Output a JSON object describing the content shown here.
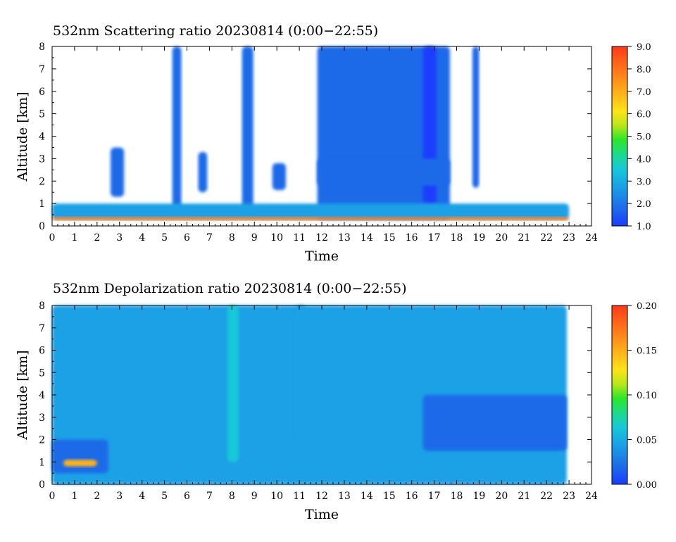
{
  "colormap": [
    "#1a3cff",
    "#1e6be8",
    "#1aa0e6",
    "#18c8d8",
    "#1fd98a",
    "#2ee62a",
    "#b8e61a",
    "#ffe31a",
    "#ffb21a",
    "#ff7a1a",
    "#ff3a1a"
  ],
  "chart_data": [
    {
      "type": "heatmap",
      "title": "532nm Scattering ratio  20230814 (0:00−22:55)",
      "xlabel": "Time",
      "ylabel": "Altitude [km]",
      "xlim": [
        0,
        24
      ],
      "ylim": [
        0,
        8
      ],
      "x_ticks": [
        0,
        1,
        2,
        3,
        4,
        5,
        6,
        7,
        8,
        9,
        10,
        11,
        12,
        13,
        14,
        15,
        16,
        17,
        18,
        19,
        20,
        21,
        22,
        23,
        24
      ],
      "y_ticks": [
        0,
        1,
        2,
        3,
        4,
        5,
        6,
        7,
        8
      ],
      "colorbar": {
        "range": [
          1.0,
          9.0
        ],
        "ticks": [
          "1.0",
          "2.0",
          "3.0",
          "4.0",
          "5.0",
          "6.0",
          "7.0",
          "8.0",
          "9.0"
        ]
      },
      "regions": [
        {
          "x": [
            11.8,
            17.7
          ],
          "y": [
            0.3,
            8.0
          ],
          "value": 1.6
        },
        {
          "x": [
            16.5,
            17.1
          ],
          "y": [
            1.0,
            8.0
          ],
          "value": 1.3
        },
        {
          "x": [
            11.8,
            17.7
          ],
          "y": [
            1.8,
            3.0
          ],
          "value": 2.0
        },
        {
          "x": [
            5.35,
            5.75
          ],
          "y": [
            0.5,
            8.0
          ],
          "value": 1.8
        },
        {
          "x": [
            8.45,
            8.95
          ],
          "y": [
            0.5,
            8.0
          ],
          "value": 1.9
        },
        {
          "x": [
            18.7,
            19.0
          ],
          "y": [
            1.7,
            8.0
          ],
          "value": 1.7
        },
        {
          "x": [
            2.6,
            3.2
          ],
          "y": [
            1.3,
            3.5
          ],
          "value": 1.8
        },
        {
          "x": [
            6.5,
            6.9
          ],
          "y": [
            1.5,
            3.3
          ],
          "value": 1.8
        },
        {
          "x": [
            9.8,
            10.4
          ],
          "y": [
            1.6,
            2.8
          ],
          "value": 1.8
        },
        {
          "x": [
            0,
            23
          ],
          "y": [
            0.3,
            1.0
          ],
          "value": 2.5
        },
        {
          "x": [
            0,
            23
          ],
          "y": [
            0.25,
            0.4
          ],
          "value": 8.5
        }
      ]
    },
    {
      "type": "heatmap",
      "title": "532nm Depolarization ratio  20230814 (0:00−22:55)",
      "xlabel": "Time",
      "ylabel": "Altitude [km]",
      "xlim": [
        0,
        24
      ],
      "ylim": [
        0,
        8
      ],
      "x_ticks": [
        0,
        1,
        2,
        3,
        4,
        5,
        6,
        7,
        8,
        9,
        10,
        11,
        12,
        13,
        14,
        15,
        16,
        17,
        18,
        19,
        20,
        21,
        22,
        23,
        24
      ],
      "y_ticks": [
        0,
        1,
        2,
        3,
        4,
        5,
        6,
        7,
        8
      ],
      "colorbar": {
        "range": [
          0.0,
          0.2
        ],
        "ticks": [
          "0.00",
          "0.05",
          "0.10",
          "0.15",
          "0.20"
        ]
      },
      "regions": [
        {
          "x": [
            0,
            22.9
          ],
          "y": [
            0,
            8.0
          ],
          "value": 0.03
        },
        {
          "x": [
            16.5,
            22.9
          ],
          "y": [
            1.5,
            4.0
          ],
          "value": 0.015
        },
        {
          "x": [
            0,
            2.5
          ],
          "y": [
            0.5,
            2.0
          ],
          "value": 0.015
        },
        {
          "x": [
            7.8,
            8.3
          ],
          "y": [
            1.0,
            8.0
          ],
          "value": 0.06
        },
        {
          "x": [
            10.8,
            11.3
          ],
          "y": [
            2.0,
            8.0
          ],
          "value": 0.045
        },
        {
          "x": [
            0.5,
            2.0
          ],
          "y": [
            0.8,
            1.1
          ],
          "value": 0.16
        }
      ]
    }
  ]
}
